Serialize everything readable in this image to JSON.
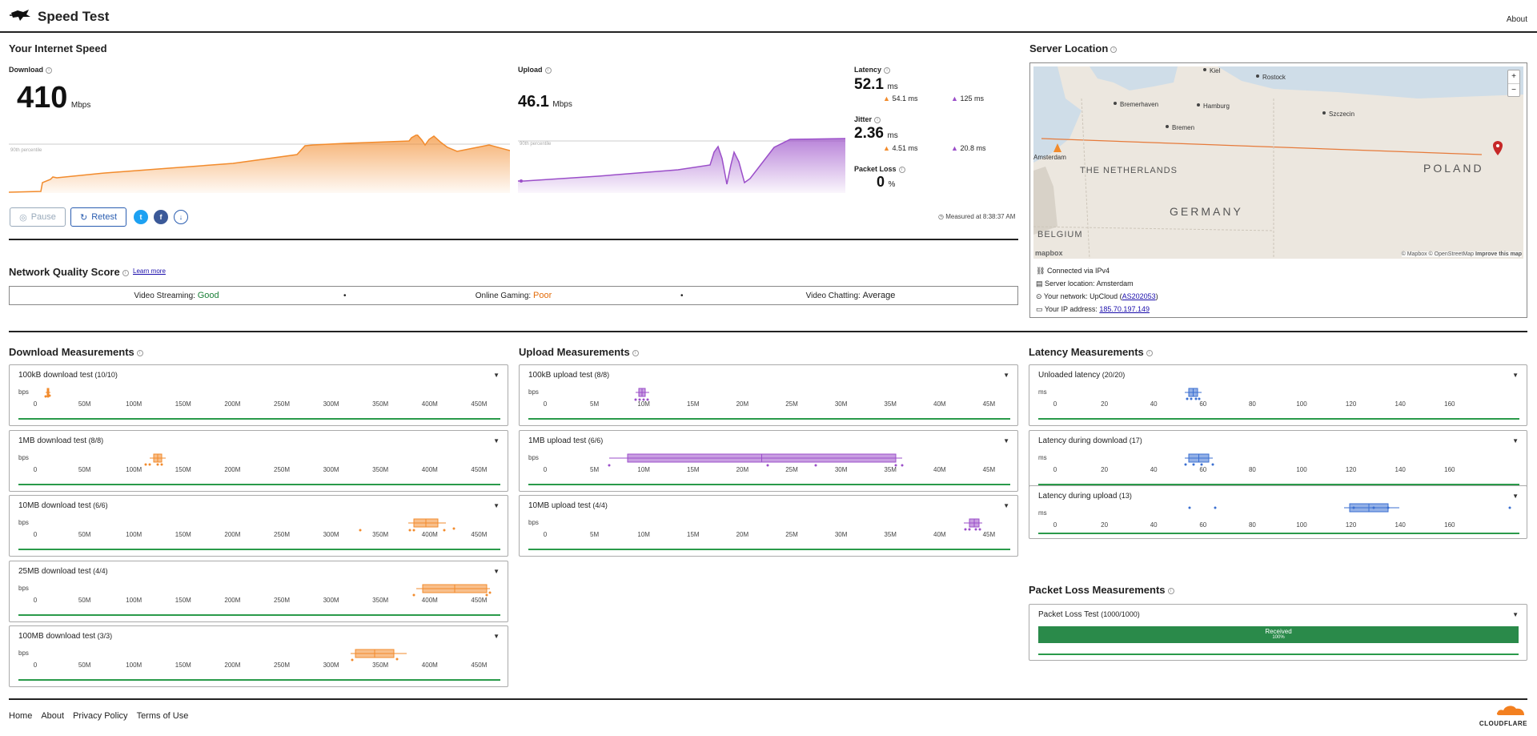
{
  "header": {
    "title": "Speed Test",
    "about": "About"
  },
  "speed": {
    "title": "Your Internet Speed",
    "download": {
      "label": "Download",
      "value": "410",
      "unit": "Mbps",
      "percentile": "90th percentile"
    },
    "upload": {
      "label": "Upload",
      "value": "46.1",
      "unit": "Mbps",
      "percentile": "90th percentile"
    },
    "latency": {
      "label": "Latency",
      "value": "52.1",
      "unit": "ms",
      "down": "54.1 ms",
      "up": "125 ms"
    },
    "jitter": {
      "label": "Jitter",
      "value": "2.36",
      "unit": "ms",
      "down": "4.51 ms",
      "up": "20.8 ms"
    },
    "packet_loss": {
      "label": "Packet Loss",
      "value": "0",
      "unit": "%"
    },
    "buttons": {
      "pause": "Pause",
      "retest": "Retest"
    },
    "measured_at": "Measured at 8:38:37 AM"
  },
  "quality": {
    "title": "Network Quality Score",
    "learn_more": "Learn more",
    "items": [
      {
        "label": "Video Streaming:",
        "value": "Good",
        "color": "#1a7f37"
      },
      {
        "label": "Online Gaming:",
        "value": "Poor",
        "color": "#e36c0a"
      },
      {
        "label": "Video Chatting:",
        "value": "Average",
        "color": "#222222"
      }
    ]
  },
  "server": {
    "title": "Server Location",
    "map": {
      "cities": [
        "Kiel",
        "Rostock",
        "Bremerhaven",
        "Hamburg",
        "Szczecin",
        "Bremen",
        "Amsterdam"
      ],
      "countries": [
        "THE NETHERLANDS",
        "GERMANY",
        "POLAND",
        "BELGIUM"
      ],
      "attribution": "© Mapbox © OpenStreetMap",
      "improve": "Improve this map",
      "brand": "mapbox",
      "zoom_in": "+",
      "zoom_out": "−"
    },
    "connected": "Connected via IPv4",
    "location": "Server location: Amsterdam",
    "network_prefix": "Your network: UpCloud (",
    "network_asn": "AS202053",
    "network_suffix": ")",
    "ip_prefix": "Your IP address: ",
    "ip": "185.70.197.149"
  },
  "download_measurements": {
    "title": "Download Measurements",
    "unit": "bps",
    "ticks": [
      "0",
      "50M",
      "100M",
      "150M",
      "200M",
      "250M",
      "300M",
      "350M",
      "400M",
      "450M"
    ],
    "tests": [
      {
        "name": "100kB download test",
        "count": "(10/10)"
      },
      {
        "name": "1MB download test",
        "count": "(8/8)"
      },
      {
        "name": "10MB download test",
        "count": "(6/6)"
      },
      {
        "name": "25MB download test",
        "count": "(4/4)"
      },
      {
        "name": "100MB download test",
        "count": "(3/3)"
      }
    ]
  },
  "upload_measurements": {
    "title": "Upload Measurements",
    "unit": "bps",
    "ticks": [
      "0",
      "5M",
      "10M",
      "15M",
      "20M",
      "25M",
      "30M",
      "35M",
      "40M",
      "45M"
    ],
    "tests": [
      {
        "name": "100kB upload test",
        "count": "(8/8)"
      },
      {
        "name": "1MB upload test",
        "count": "(6/6)"
      },
      {
        "name": "10MB upload test",
        "count": "(4/4)"
      }
    ]
  },
  "latency_measurements": {
    "title": "Latency Measurements",
    "unit": "ms",
    "ticks": [
      "0",
      "20",
      "40",
      "60",
      "80",
      "100",
      "120",
      "140",
      "160"
    ],
    "tests": [
      {
        "name": "Unloaded latency",
        "count": "(20/20)"
      },
      {
        "name": "Latency during download",
        "count": "(17)"
      },
      {
        "name": "Latency during upload",
        "count": "(13)"
      }
    ]
  },
  "packet_loss_measurements": {
    "title": "Packet Loss Measurements",
    "test": {
      "name": "Packet Loss Test",
      "count": "(1000/1000)",
      "bar_label": "Received",
      "bar_pct": "100%",
      "fraction_received": 1.0
    }
  },
  "footer": {
    "links": [
      "Home",
      "About",
      "Privacy Policy",
      "Terms of Use"
    ],
    "brand": "CLOUDFLARE"
  },
  "colors": {
    "download": "#f28b2c",
    "upload": "#9b4fc9",
    "latency": "#3b6fd1",
    "good": "#2a8a4a",
    "accent_link": "#1a0dab"
  },
  "icons": [
    "speed-test-logo-icon",
    "info-icon",
    "pause-icon",
    "retest-icon",
    "twitter-icon",
    "facebook-icon",
    "download-results-icon",
    "chevron-down-icon",
    "network-icon",
    "server-icon",
    "location-pin-icon",
    "ip-icon",
    "cloudflare-logo-icon"
  ]
}
